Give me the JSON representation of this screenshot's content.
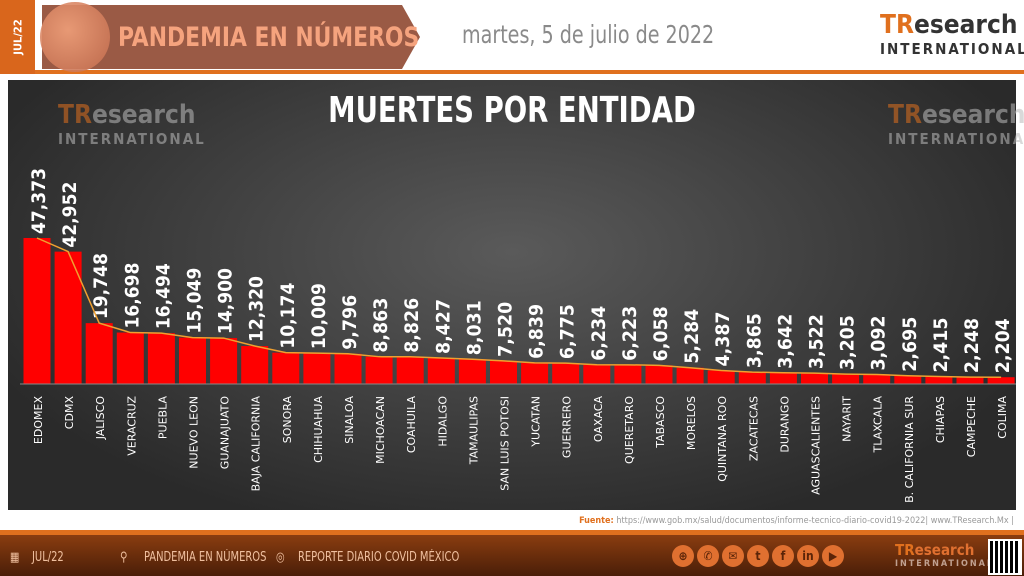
{
  "header": {
    "side_label": "JUL/22",
    "banner_title": "PANDEMIA EN NÚMEROS",
    "date": "martes, 5 de julio de 2022"
  },
  "logo": {
    "tr": "TR",
    "rest": "esearch",
    "intl": "INTERNATIONAL"
  },
  "footer": {
    "source_label": "Fuente:",
    "source_text": "https://www.gob.mx/salud/documentos/informe-tecnico-diario-covid19-2022| www.TResearch.Mx |",
    "items": [
      "JUL/22",
      "PANDEMIA EN NÚMEROS",
      "REPORTE DIARIO COVID MÉXICO"
    ],
    "social_icons": [
      "globe-icon",
      "whatsapp-icon",
      "email-icon",
      "twitter-icon",
      "facebook-icon",
      "linkedin-icon",
      "youtube-icon"
    ]
  },
  "colors": {
    "bar": "#ff0000",
    "trend": "#f0a030",
    "accent": "#e0701e"
  },
  "chart_data": {
    "type": "bar",
    "title": "MUERTES POR ENTIDAD",
    "categories": [
      "EDOMEX",
      "CDMX",
      "JALISCO",
      "VERACRUZ",
      "PUEBLA",
      "NUEVO LEON",
      "GUANAJUATO",
      "BAJA CALIFORNIA",
      "SONORA",
      "CHIHUAHUA",
      "SINALOA",
      "MICHOACAN",
      "COAHUILA",
      "HIDALGO",
      "TAMAULIPAS",
      "SAN LUIS POTOSI",
      "YUCATAN",
      "GUERRERO",
      "OAXACA",
      "QUERETARO",
      "TABASCO",
      "MORELOS",
      "QUINTANA ROO",
      "ZACATECAS",
      "DURANGO",
      "AGUASCALIENTES",
      "NAYARIT",
      "TLAXCALA",
      "B. CALIFORNIA SUR",
      "CHIAPAS",
      "CAMPECHE",
      "COLIMA"
    ],
    "values": [
      47373,
      42952,
      19748,
      16698,
      16494,
      15049,
      14900,
      12320,
      10174,
      10009,
      9796,
      8863,
      8826,
      8427,
      8031,
      7520,
      6839,
      6775,
      6234,
      6223,
      6058,
      5284,
      4387,
      3865,
      3642,
      3522,
      3205,
      3092,
      2695,
      2415,
      2248,
      2204
    ],
    "labels": [
      "47,373",
      "42,952",
      "19,748",
      "16,698",
      "16,494",
      "15,049",
      "14,900",
      "12,320",
      "10,174",
      "10,009",
      "9,796",
      "8,863",
      "8,826",
      "8,427",
      "8,031",
      "7,520",
      "6,839",
      "6,775",
      "6,234",
      "6,223",
      "6,058",
      "5,284",
      "4,387",
      "3,865",
      "3,642",
      "3,522",
      "3,205",
      "3,092",
      "2,695",
      "2,415",
      "2,248",
      "2,204"
    ],
    "trend_line": true,
    "grid": false
  }
}
